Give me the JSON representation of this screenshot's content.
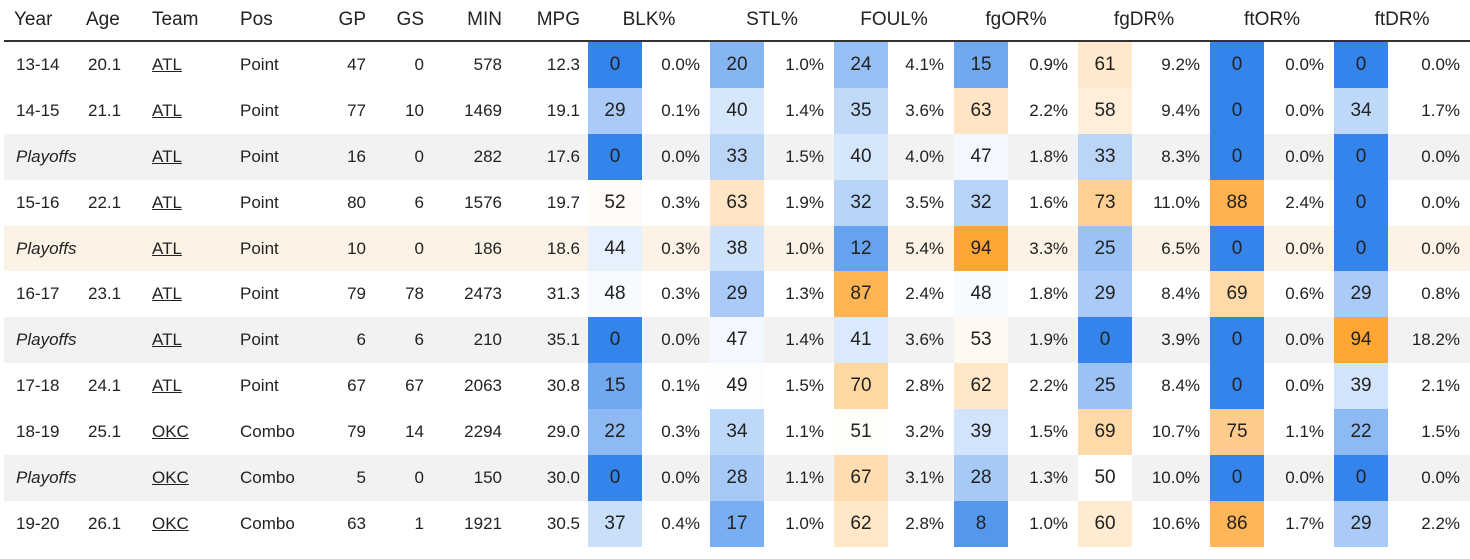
{
  "headers": {
    "year": "Year",
    "age": "Age",
    "team": "Team",
    "pos": "Pos",
    "gp": "GP",
    "gs": "GS",
    "min": "MIN",
    "mpg": "MPG",
    "blk": "BLK%",
    "stl": "STL%",
    "foul": "FOUL%",
    "fgor": "fgOR%",
    "fgdr": "fgDR%",
    "ftor": "ftOR%",
    "ftdr": "ftDR%"
  },
  "rows": [
    {
      "year": "13-14",
      "age": "20.1",
      "team": "ATL",
      "pos": "Point",
      "gp": "47",
      "gs": "0",
      "min": "578",
      "mpg": "12.3",
      "blk_p": "0",
      "blk": "0.0%",
      "stl_p": "20",
      "stl": "1.0%",
      "foul_p": "24",
      "foul": "4.1%",
      "fgor_p": "15",
      "fgor": "0.9%",
      "fgdr_p": "61",
      "fgdr": "9.2%",
      "ftor_p": "0",
      "ftor": "0.0%",
      "ftdr_p": "0",
      "ftdr": "0.0%"
    },
    {
      "year": "14-15",
      "age": "21.1",
      "team": "ATL",
      "pos": "Point",
      "gp": "77",
      "gs": "10",
      "min": "1469",
      "mpg": "19.1",
      "blk_p": "29",
      "blk": "0.1%",
      "stl_p": "40",
      "stl": "1.4%",
      "foul_p": "35",
      "foul": "3.6%",
      "fgor_p": "63",
      "fgor": "2.2%",
      "fgdr_p": "58",
      "fgdr": "9.4%",
      "ftor_p": "0",
      "ftor": "0.0%",
      "ftdr_p": "34",
      "ftdr": "1.7%"
    },
    {
      "year": "Playoffs",
      "age": "",
      "team": "ATL",
      "pos": "Point",
      "gp": "16",
      "gs": "0",
      "min": "282",
      "mpg": "17.6",
      "blk_p": "0",
      "blk": "0.0%",
      "stl_p": "33",
      "stl": "1.5%",
      "foul_p": "40",
      "foul": "4.0%",
      "fgor_p": "47",
      "fgor": "1.8%",
      "fgdr_p": "33",
      "fgdr": "8.3%",
      "ftor_p": "0",
      "ftor": "0.0%",
      "ftdr_p": "0",
      "ftdr": "0.0%"
    },
    {
      "year": "15-16",
      "age": "22.1",
      "team": "ATL",
      "pos": "Point",
      "gp": "80",
      "gs": "6",
      "min": "1576",
      "mpg": "19.7",
      "blk_p": "52",
      "blk": "0.3%",
      "stl_p": "63",
      "stl": "1.9%",
      "foul_p": "32",
      "foul": "3.5%",
      "fgor_p": "32",
      "fgor": "1.6%",
      "fgdr_p": "73",
      "fgdr": "11.0%",
      "ftor_p": "88",
      "ftor": "2.4%",
      "ftdr_p": "0",
      "ftdr": "0.0%"
    },
    {
      "year": "Playoffs",
      "age": "",
      "team": "ATL",
      "pos": "Point",
      "gp": "10",
      "gs": "0",
      "min": "186",
      "mpg": "18.6",
      "blk_p": "44",
      "blk": "0.3%",
      "stl_p": "38",
      "stl": "1.0%",
      "foul_p": "12",
      "foul": "5.4%",
      "fgor_p": "94",
      "fgor": "3.3%",
      "fgdr_p": "25",
      "fgdr": "6.5%",
      "ftor_p": "0",
      "ftor": "0.0%",
      "ftdr_p": "0",
      "ftdr": "0.0%"
    },
    {
      "year": "16-17",
      "age": "23.1",
      "team": "ATL",
      "pos": "Point",
      "gp": "79",
      "gs": "78",
      "min": "2473",
      "mpg": "31.3",
      "blk_p": "48",
      "blk": "0.3%",
      "stl_p": "29",
      "stl": "1.3%",
      "foul_p": "87",
      "foul": "2.4%",
      "fgor_p": "48",
      "fgor": "1.8%",
      "fgdr_p": "29",
      "fgdr": "8.4%",
      "ftor_p": "69",
      "ftor": "0.6%",
      "ftdr_p": "29",
      "ftdr": "0.8%"
    },
    {
      "year": "Playoffs",
      "age": "",
      "team": "ATL",
      "pos": "Point",
      "gp": "6",
      "gs": "6",
      "min": "210",
      "mpg": "35.1",
      "blk_p": "0",
      "blk": "0.0%",
      "stl_p": "47",
      "stl": "1.4%",
      "foul_p": "41",
      "foul": "3.6%",
      "fgor_p": "53",
      "fgor": "1.9%",
      "fgdr_p": "0",
      "fgdr": "3.9%",
      "ftor_p": "0",
      "ftor": "0.0%",
      "ftdr_p": "94",
      "ftdr": "18.2%"
    },
    {
      "year": "17-18",
      "age": "24.1",
      "team": "ATL",
      "pos": "Point",
      "gp": "67",
      "gs": "67",
      "min": "2063",
      "mpg": "30.8",
      "blk_p": "15",
      "blk": "0.1%",
      "stl_p": "49",
      "stl": "1.5%",
      "foul_p": "70",
      "foul": "2.8%",
      "fgor_p": "62",
      "fgor": "2.2%",
      "fgdr_p": "25",
      "fgdr": "8.4%",
      "ftor_p": "0",
      "ftor": "0.0%",
      "ftdr_p": "39",
      "ftdr": "2.1%"
    },
    {
      "year": "18-19",
      "age": "25.1",
      "team": "OKC",
      "pos": "Combo",
      "gp": "79",
      "gs": "14",
      "min": "2294",
      "mpg": "29.0",
      "blk_p": "22",
      "blk": "0.3%",
      "stl_p": "34",
      "stl": "1.1%",
      "foul_p": "51",
      "foul": "3.2%",
      "fgor_p": "39",
      "fgor": "1.5%",
      "fgdr_p": "69",
      "fgdr": "10.7%",
      "ftor_p": "75",
      "ftor": "1.1%",
      "ftdr_p": "22",
      "ftdr": "1.5%"
    },
    {
      "year": "Playoffs",
      "age": "",
      "team": "OKC",
      "pos": "Combo",
      "gp": "5",
      "gs": "0",
      "min": "150",
      "mpg": "30.0",
      "blk_p": "0",
      "blk": "0.0%",
      "stl_p": "28",
      "stl": "1.1%",
      "foul_p": "67",
      "foul": "3.1%",
      "fgor_p": "28",
      "fgor": "1.3%",
      "fgdr_p": "50",
      "fgdr": "10.0%",
      "ftor_p": "0",
      "ftor": "0.0%",
      "ftdr_p": "0",
      "ftdr": "0.0%"
    },
    {
      "year": "19-20",
      "age": "26.1",
      "team": "OKC",
      "pos": "Combo",
      "gp": "63",
      "gs": "1",
      "min": "1921",
      "mpg": "30.5",
      "blk_p": "37",
      "blk": "0.4%",
      "stl_p": "17",
      "stl": "1.0%",
      "foul_p": "62",
      "foul": "2.8%",
      "fgor_p": "8",
      "fgor": "1.0%",
      "fgdr_p": "60",
      "fgdr": "10.6%",
      "ftor_p": "86",
      "ftor": "1.7%",
      "ftdr_p": "29",
      "ftdr": "2.2%"
    }
  ]
}
